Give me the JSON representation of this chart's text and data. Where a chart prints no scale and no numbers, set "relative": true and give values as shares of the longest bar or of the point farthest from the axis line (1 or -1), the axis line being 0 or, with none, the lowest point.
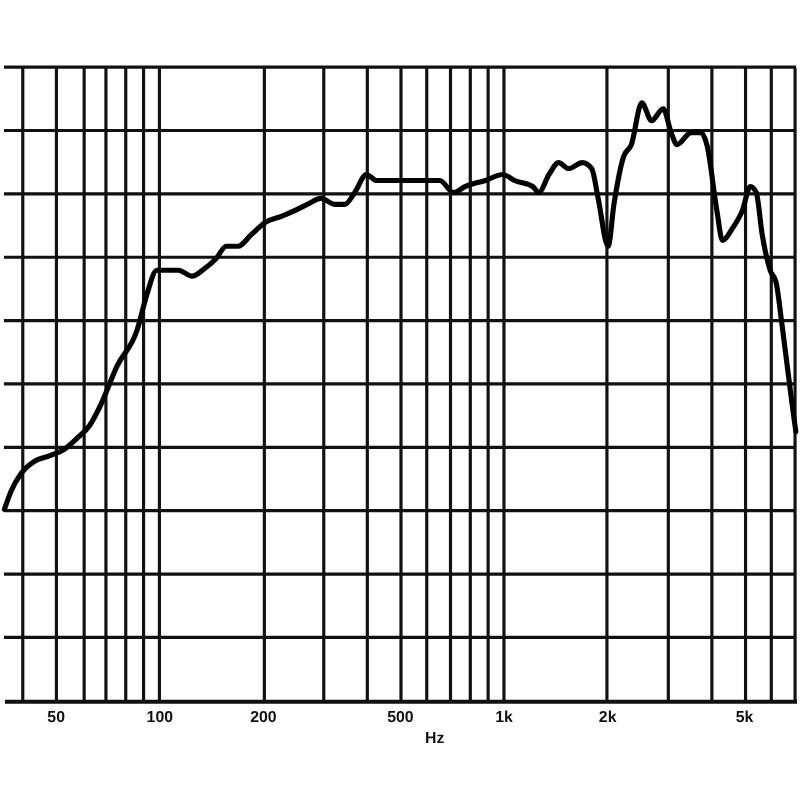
{
  "chart_data": {
    "type": "line",
    "xlabel": "Hz",
    "relative": true,
    "log": "x",
    "grid": true,
    "line_style": "solid",
    "xlim": [
      35.5,
      7100
    ],
    "xticks": [
      {
        "value": 40,
        "label": null
      },
      50,
      {
        "value": 60,
        "label": null
      },
      {
        "value": 70,
        "label": null
      },
      {
        "value": 80,
        "label": null
      },
      {
        "value": 90,
        "label": null
      },
      100,
      200,
      {
        "value": 300,
        "label": null
      },
      {
        "value": 400,
        "label": null
      },
      500,
      {
        "value": 600,
        "label": null
      },
      {
        "value": 700,
        "label": null
      },
      {
        "value": 800,
        "label": null
      },
      {
        "value": 900,
        "label": null
      },
      {
        "value": 1000,
        "label": "1k"
      },
      {
        "value": 2000,
        "label": "2k"
      },
      {
        "value": 3000,
        "label": null
      },
      {
        "value": 4000,
        "label": null
      },
      {
        "value": 5000,
        "label": "5k"
      },
      {
        "value": 6000,
        "label": null
      },
      {
        "value": 7000,
        "label": null
      }
    ],
    "x": [
      35.6,
      37.2,
      39.8,
      43.4,
      48.3,
      53.0,
      58.1,
      62.9,
      67.2,
      75.7,
      86.5,
      92.4,
      98.7,
      105,
      114,
      125,
      134,
      147,
      157,
      170,
      186,
      204,
      227,
      249,
      270,
      296,
      325,
      347,
      371,
      401,
      429,
      503,
      574,
      613,
      655,
      718,
      778,
      888,
      1000,
      1080,
      1220,
      1270,
      1360,
      1450,
      1550,
      1700,
      1810,
      1890,
      2020,
      2100,
      2240,
      2360,
      2530,
      2700,
      2920,
      3080,
      3200,
      3520,
      3760,
      3910,
      4180,
      4340,
      4640,
      4960,
      5230,
      5440,
      5660,
      5970,
      6210,
      6460,
      6900,
      7090
    ],
    "series": [
      {
        "color": "#000000",
        "values": [
          0.32,
          0.35,
          0.38,
          0.4,
          0.41,
          0.42,
          0.44,
          0.46,
          0.49,
          0.56,
          0.62,
          0.68,
          0.72,
          0.72,
          0.72,
          0.71,
          0.72,
          0.74,
          0.76,
          0.76,
          0.78,
          0.8,
          0.81,
          0.82,
          0.83,
          0.84,
          0.83,
          0.83,
          0.85,
          0.88,
          0.87,
          0.87,
          0.87,
          0.87,
          0.87,
          0.85,
          0.86,
          0.87,
          0.88,
          0.87,
          0.86,
          0.85,
          0.88,
          0.9,
          0.89,
          0.9,
          0.89,
          0.84,
          0.76,
          0.83,
          0.91,
          0.93,
          1.0,
          0.97,
          0.99,
          0.95,
          0.93,
          0.95,
          0.95,
          0.93,
          0.82,
          0.77,
          0.79,
          0.82,
          0.86,
          0.85,
          0.78,
          0.72,
          0.7,
          0.63,
          0.5,
          0.45
        ]
      }
    ]
  }
}
